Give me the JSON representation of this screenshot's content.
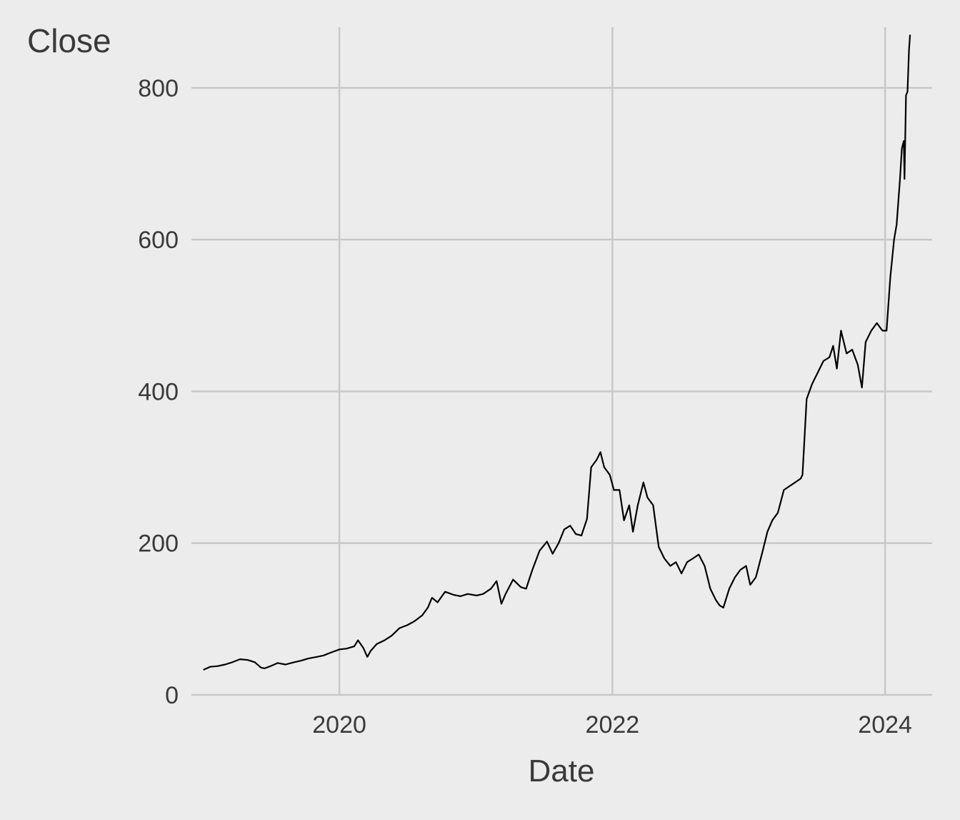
{
  "chart_data": {
    "type": "line",
    "xlabel": "Date",
    "ylabel": "Close",
    "x_ticks": [
      "2020",
      "2022",
      "2024"
    ],
    "y_ticks": [
      0,
      200,
      400,
      600,
      800
    ],
    "xlim": [
      "2018-12-01",
      "2024-05-06"
    ],
    "ylim": [
      0,
      880
    ],
    "grid": true,
    "legend": "none",
    "colors": {
      "background": "#ececec",
      "grid": "#c8c8c8",
      "line": "#000000"
    },
    "series": [
      {
        "x": [
          "2019-01-02",
          "2019-01-20",
          "2019-02-10",
          "2019-03-01",
          "2019-03-20",
          "2019-04-10",
          "2019-05-01",
          "2019-05-20",
          "2019-06-05",
          "2019-06-15",
          "2019-07-01",
          "2019-07-20",
          "2019-08-10",
          "2019-09-01",
          "2019-09-20",
          "2019-10-10",
          "2019-11-01",
          "2019-11-20",
          "2019-12-10",
          "2020-01-02",
          "2020-01-20",
          "2020-02-10",
          "2020-02-20",
          "2020-03-05",
          "2020-03-16",
          "2020-03-25",
          "2020-04-10",
          "2020-05-01",
          "2020-05-20",
          "2020-06-10",
          "2020-07-01",
          "2020-07-20",
          "2020-08-10",
          "2020-08-25",
          "2020-09-05",
          "2020-09-20",
          "2020-10-10",
          "2020-11-01",
          "2020-11-20",
          "2020-12-10",
          "2021-01-02",
          "2021-01-20",
          "2021-02-10",
          "2021-02-25",
          "2021-03-10",
          "2021-03-20",
          "2021-04-10",
          "2021-05-01",
          "2021-05-15",
          "2021-06-01",
          "2021-06-20",
          "2021-07-10",
          "2021-07-25",
          "2021-08-10",
          "2021-08-25",
          "2021-09-10",
          "2021-09-25",
          "2021-10-10",
          "2021-10-25",
          "2021-11-05",
          "2021-11-20",
          "2021-11-30",
          "2021-12-10",
          "2021-12-25",
          "2022-01-05",
          "2022-01-20",
          "2022-02-01",
          "2022-02-15",
          "2022-02-25",
          "2022-03-10",
          "2022-03-25",
          "2022-04-05",
          "2022-04-20",
          "2022-05-05",
          "2022-05-20",
          "2022-06-05",
          "2022-06-20",
          "2022-07-05",
          "2022-07-20",
          "2022-08-05",
          "2022-08-20",
          "2022-09-05",
          "2022-09-20",
          "2022-10-05",
          "2022-10-15",
          "2022-10-25",
          "2022-11-10",
          "2022-11-25",
          "2022-12-10",
          "2022-12-25",
          "2023-01-05",
          "2023-01-20",
          "2023-02-05",
          "2023-02-20",
          "2023-03-05",
          "2023-03-20",
          "2023-04-05",
          "2023-04-20",
          "2023-05-05",
          "2023-05-20",
          "2023-05-25",
          "2023-06-05",
          "2023-06-20",
          "2023-07-05",
          "2023-07-20",
          "2023-08-05",
          "2023-08-15",
          "2023-08-25",
          "2023-09-05",
          "2023-09-20",
          "2023-10-05",
          "2023-10-20",
          "2023-10-31",
          "2023-11-10",
          "2023-11-25",
          "2023-12-10",
          "2023-12-25",
          "2024-01-05",
          "2024-01-15",
          "2024-01-25",
          "2024-02-01",
          "2024-02-10",
          "2024-02-15",
          "2024-02-20",
          "2024-02-22",
          "2024-02-26",
          "2024-03-01",
          "2024-03-05",
          "2024-03-08"
        ],
        "values": [
          33,
          37,
          38,
          40,
          43,
          47,
          46,
          43,
          36,
          35,
          38,
          42,
          40,
          43,
          45,
          48,
          50,
          52,
          56,
          60,
          61,
          64,
          72,
          62,
          50,
          58,
          67,
          72,
          78,
          88,
          92,
          97,
          105,
          115,
          128,
          122,
          136,
          132,
          130,
          133,
          131,
          133,
          140,
          150,
          120,
          132,
          152,
          142,
          140,
          165,
          190,
          202,
          186,
          200,
          218,
          223,
          212,
          210,
          232,
          300,
          310,
          320,
          300,
          290,
          270,
          270,
          230,
          250,
          215,
          250,
          280,
          260,
          250,
          195,
          180,
          170,
          175,
          160,
          175,
          180,
          185,
          170,
          140,
          125,
          118,
          115,
          140,
          155,
          165,
          170,
          145,
          155,
          185,
          215,
          230,
          240,
          270,
          275,
          280,
          285,
          290,
          390,
          410,
          425,
          440,
          445,
          460,
          430,
          480,
          450,
          455,
          435,
          405,
          465,
          480,
          490,
          480,
          480,
          550,
          600,
          620,
          680,
          720,
          730,
          680,
          790,
          795,
          850,
          870
        ]
      }
    ]
  }
}
